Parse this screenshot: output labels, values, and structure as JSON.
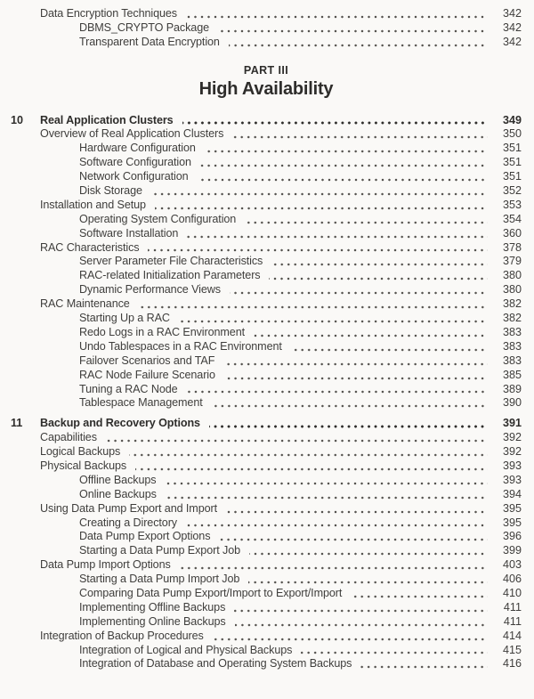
{
  "page": {
    "background_color": "#faf9f7",
    "text_color": "#3f3e3c",
    "bold_text_color": "#2e2d2b"
  },
  "pre_part_entries": [
    {
      "indent": 1,
      "title": "Data Encryption Techniques",
      "page": "342"
    },
    {
      "indent": 2,
      "title": "DBMS_CRYPTO Package",
      "page": "342"
    },
    {
      "indent": 2,
      "title": "Transparent Data Encryption",
      "page": "342"
    }
  ],
  "part_heading": {
    "kicker": "PART III",
    "title": "High Availability"
  },
  "chapters": [
    {
      "number": "10",
      "title": "Real Application Clusters",
      "page": "349",
      "entries": [
        {
          "indent": 1,
          "title": "Overview of Real Application Clusters",
          "page": "350"
        },
        {
          "indent": 2,
          "title": "Hardware Configuration",
          "page": "351"
        },
        {
          "indent": 2,
          "title": "Software Configuration",
          "page": "351"
        },
        {
          "indent": 2,
          "title": "Network Configuration",
          "page": "351"
        },
        {
          "indent": 2,
          "title": "Disk Storage",
          "page": "352"
        },
        {
          "indent": 1,
          "title": "Installation and Setup",
          "page": "353"
        },
        {
          "indent": 2,
          "title": "Operating System Configuration",
          "page": "354"
        },
        {
          "indent": 2,
          "title": "Software Installation",
          "page": "360"
        },
        {
          "indent": 1,
          "title": "RAC Characteristics",
          "page": "378"
        },
        {
          "indent": 2,
          "title": "Server Parameter File Characteristics",
          "page": "379"
        },
        {
          "indent": 2,
          "title": "RAC-related Initialization Parameters",
          "page": "380"
        },
        {
          "indent": 2,
          "title": "Dynamic Performance Views",
          "page": "380"
        },
        {
          "indent": 1,
          "title": "RAC Maintenance",
          "page": "382"
        },
        {
          "indent": 2,
          "title": "Starting Up a RAC",
          "page": "382"
        },
        {
          "indent": 2,
          "title": "Redo Logs in a RAC Environment",
          "page": "383"
        },
        {
          "indent": 2,
          "title": "Undo Tablespaces in a RAC Environment",
          "page": "383"
        },
        {
          "indent": 2,
          "title": "Failover Scenarios and TAF",
          "page": "383"
        },
        {
          "indent": 2,
          "title": "RAC Node Failure Scenario",
          "page": "385"
        },
        {
          "indent": 2,
          "title": "Tuning a RAC Node",
          "page": "389"
        },
        {
          "indent": 2,
          "title": "Tablespace Management",
          "page": "390"
        }
      ]
    },
    {
      "number": "11",
      "title": "Backup and Recovery Options",
      "page": "391",
      "entries": [
        {
          "indent": 1,
          "title": "Capabilities",
          "page": "392"
        },
        {
          "indent": 1,
          "title": "Logical Backups",
          "page": "392"
        },
        {
          "indent": 1,
          "title": "Physical Backups",
          "page": "393"
        },
        {
          "indent": 2,
          "title": "Offline Backups",
          "page": "393"
        },
        {
          "indent": 2,
          "title": "Online Backups",
          "page": "394"
        },
        {
          "indent": 1,
          "title": "Using Data Pump Export and Import",
          "page": "395"
        },
        {
          "indent": 2,
          "title": "Creating a Directory",
          "page": "395"
        },
        {
          "indent": 2,
          "title": "Data Pump Export Options",
          "page": "396"
        },
        {
          "indent": 2,
          "title": "Starting a Data Pump Export Job",
          "page": "399"
        },
        {
          "indent": 1,
          "title": "Data Pump Import Options",
          "page": "403"
        },
        {
          "indent": 2,
          "title": "Starting a Data Pump Import Job",
          "page": "406"
        },
        {
          "indent": 2,
          "title": "Comparing Data Pump Export/Import to Export/Import",
          "page": "410"
        },
        {
          "indent": 2,
          "title": "Implementing Offline Backups",
          "page": "411"
        },
        {
          "indent": 2,
          "title": "Implementing Online Backups",
          "page": "411"
        },
        {
          "indent": 1,
          "title": "Integration of Backup Procedures",
          "page": "414"
        },
        {
          "indent": 2,
          "title": "Integration of Logical and Physical Backups",
          "page": "415"
        },
        {
          "indent": 2,
          "title": "Integration of Database and Operating System Backups",
          "page": "416"
        }
      ]
    }
  ]
}
